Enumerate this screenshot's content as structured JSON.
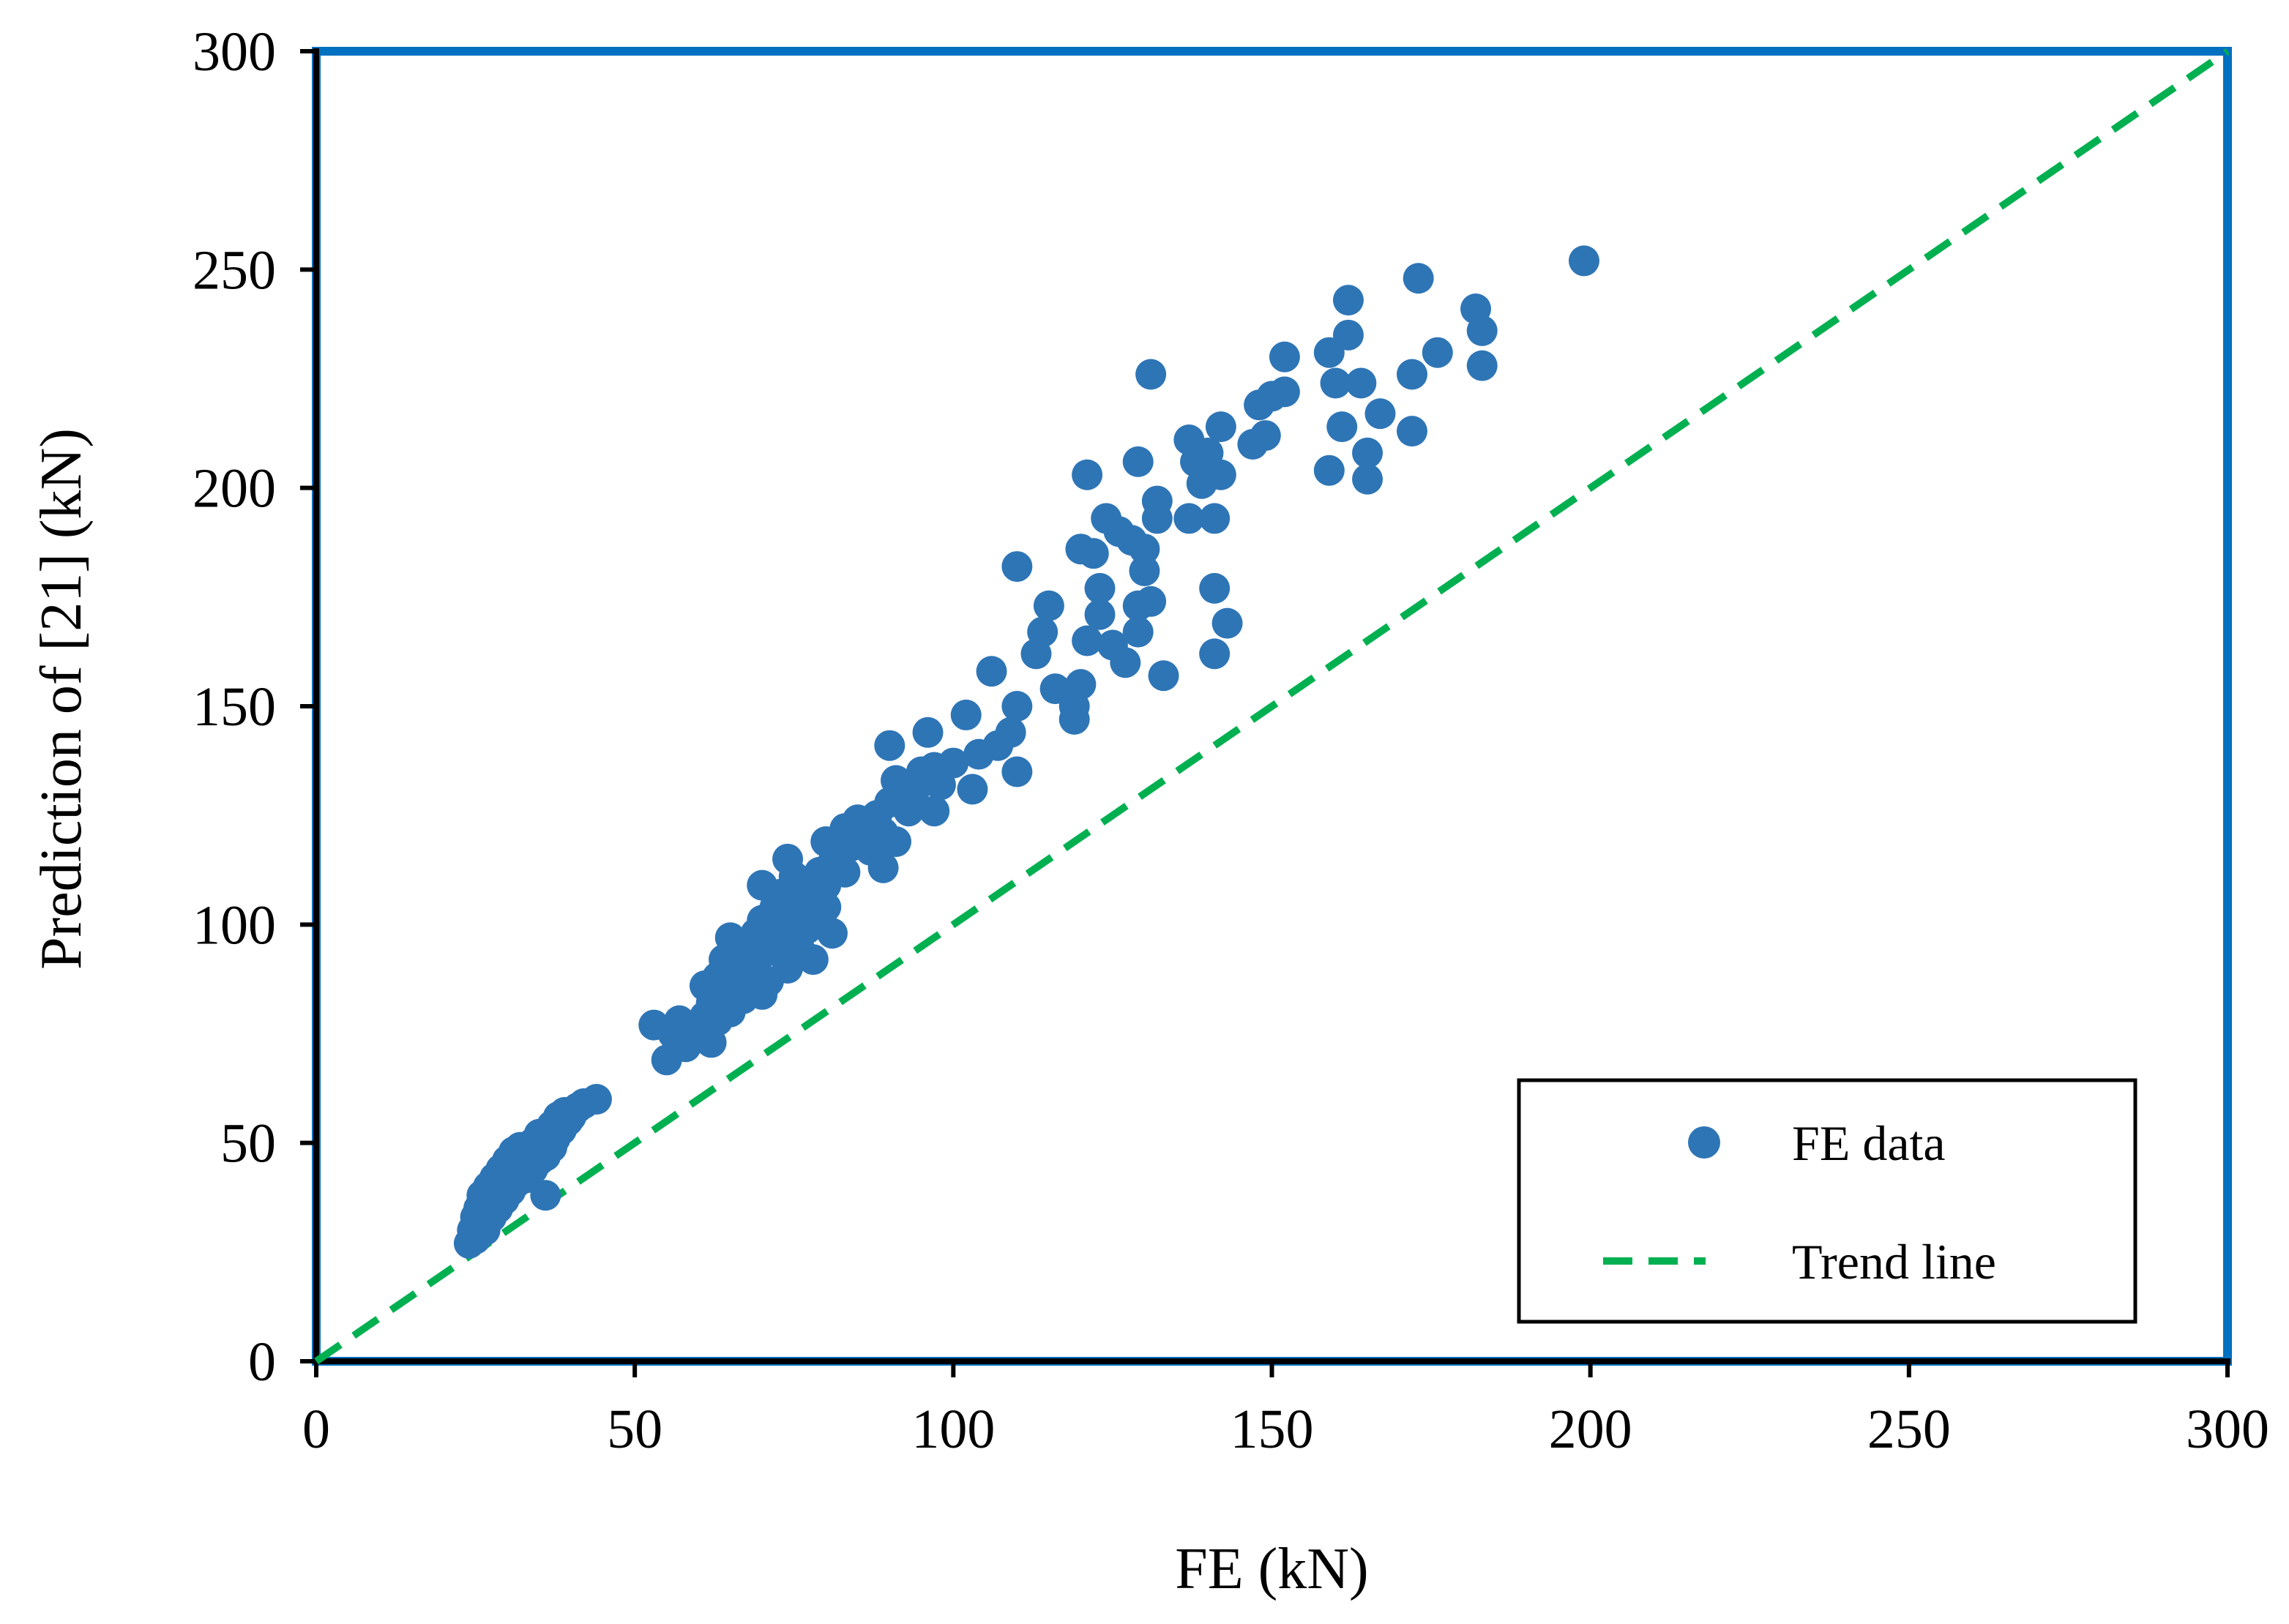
{
  "chart_data": {
    "type": "scatter",
    "xlabel": "FE (kN)",
    "ylabel": "Prediction of [21] (kN)",
    "xlim": [
      0,
      300
    ],
    "ylim": [
      0,
      300
    ],
    "xticks": [
      0,
      50,
      100,
      150,
      200,
      250,
      300
    ],
    "yticks": [
      0,
      50,
      100,
      150,
      200,
      250,
      300
    ],
    "grid": false,
    "legend_position": "bottom-right",
    "colors": {
      "points": "#2E75B6",
      "trend": "#00B050",
      "frame": "#0070C0",
      "axis": "#000000"
    },
    "series": [
      {
        "name": "FE data",
        "kind": "points",
        "points": [
          [
            24,
            27
          ],
          [
            24.5,
            30
          ],
          [
            25,
            33
          ],
          [
            25,
            28
          ],
          [
            25.5,
            35
          ],
          [
            26,
            32
          ],
          [
            26,
            38
          ],
          [
            26.5,
            30
          ],
          [
            27,
            36
          ],
          [
            27,
            40
          ],
          [
            27.5,
            33
          ],
          [
            28,
            38
          ],
          [
            28,
            42
          ],
          [
            28.5,
            35
          ],
          [
            29,
            40
          ],
          [
            29,
            44
          ],
          [
            29.5,
            37
          ],
          [
            30,
            42
          ],
          [
            30,
            46
          ],
          [
            30.5,
            39
          ],
          [
            31,
            44
          ],
          [
            31,
            48
          ],
          [
            31.5,
            41
          ],
          [
            32,
            45
          ],
          [
            32,
            49
          ],
          [
            32.5,
            43
          ],
          [
            33,
            47
          ],
          [
            33,
            42
          ],
          [
            33.5,
            45
          ],
          [
            34,
            50
          ],
          [
            34,
            44
          ],
          [
            34.5,
            48
          ],
          [
            35,
            46
          ],
          [
            35,
            52
          ],
          [
            35.5,
            49
          ],
          [
            36,
            38
          ],
          [
            36,
            47
          ],
          [
            36.5,
            51
          ],
          [
            37,
            49
          ],
          [
            37,
            54
          ],
          [
            37.5,
            51
          ],
          [
            38,
            56
          ],
          [
            38.5,
            53
          ],
          [
            39,
            57
          ],
          [
            39.5,
            55
          ],
          [
            40,
            56
          ],
          [
            41,
            58
          ],
          [
            42,
            59
          ],
          [
            44,
            60
          ],
          [
            53,
            77
          ],
          [
            55,
            69
          ],
          [
            56,
            75
          ],
          [
            57,
            78
          ],
          [
            58,
            72
          ],
          [
            59,
            76
          ],
          [
            60,
            74
          ],
          [
            61,
            79
          ],
          [
            61,
            86
          ],
          [
            62,
            73
          ],
          [
            62,
            82
          ],
          [
            63,
            88
          ],
          [
            63,
            78
          ],
          [
            64,
            92
          ],
          [
            64,
            84
          ],
          [
            65,
            80
          ],
          [
            65,
            97
          ],
          [
            66,
            86
          ],
          [
            66,
            90
          ],
          [
            67,
            95
          ],
          [
            67,
            83
          ],
          [
            68,
            88
          ],
          [
            68,
            93
          ],
          [
            69,
            98
          ],
          [
            69,
            91
          ],
          [
            70,
            84
          ],
          [
            70,
            101
          ],
          [
            70,
            109
          ],
          [
            71,
            94
          ],
          [
            71,
            87
          ],
          [
            72,
            96
          ],
          [
            72,
            104
          ],
          [
            73,
            99
          ],
          [
            73,
            107
          ],
          [
            74,
            97
          ],
          [
            74,
            90
          ],
          [
            74,
            115
          ],
          [
            75,
            102
          ],
          [
            75,
            111
          ],
          [
            76,
            94
          ],
          [
            76,
            108
          ],
          [
            77,
            99
          ],
          [
            77,
            105
          ],
          [
            78,
            101
          ],
          [
            78,
            110
          ],
          [
            78,
            92
          ],
          [
            79,
            112
          ],
          [
            80,
            109
          ],
          [
            80,
            104
          ],
          [
            80,
            119
          ],
          [
            81,
            114
          ],
          [
            81,
            98
          ],
          [
            82,
            117
          ],
          [
            83,
            112
          ],
          [
            83,
            122
          ],
          [
            84,
            118
          ],
          [
            85,
            124
          ],
          [
            86,
            120
          ],
          [
            87,
            117
          ],
          [
            88,
            125
          ],
          [
            89,
            113
          ],
          [
            89,
            121
          ],
          [
            90,
            141
          ],
          [
            90,
            128
          ],
          [
            91,
            133
          ],
          [
            91,
            119
          ],
          [
            92,
            130
          ],
          [
            93,
            126
          ],
          [
            94,
            131
          ],
          [
            95,
            135
          ],
          [
            96,
            144
          ],
          [
            97,
            136
          ],
          [
            97,
            126
          ],
          [
            98,
            132
          ],
          [
            100,
            137
          ],
          [
            102,
            148
          ],
          [
            103,
            131
          ],
          [
            104,
            139
          ],
          [
            106,
            158
          ],
          [
            107,
            141
          ],
          [
            109,
            144
          ],
          [
            110,
            135
          ],
          [
            110,
            150
          ],
          [
            110,
            182
          ],
          [
            113,
            162
          ],
          [
            114,
            167
          ],
          [
            115,
            173
          ],
          [
            116,
            154
          ],
          [
            119,
            150
          ],
          [
            119,
            147
          ],
          [
            120,
            186
          ],
          [
            120,
            155
          ],
          [
            121,
            203
          ],
          [
            121,
            165
          ],
          [
            122,
            185
          ],
          [
            123,
            171
          ],
          [
            123,
            177
          ],
          [
            124,
            193
          ],
          [
            125,
            164
          ],
          [
            126,
            190
          ],
          [
            127,
            160
          ],
          [
            128,
            188
          ],
          [
            129,
            206
          ],
          [
            129,
            173
          ],
          [
            129,
            167
          ],
          [
            130,
            181
          ],
          [
            130,
            186
          ],
          [
            131,
            174
          ],
          [
            131,
            226
          ],
          [
            132,
            197
          ],
          [
            132,
            193
          ],
          [
            133,
            157
          ],
          [
            137,
            193
          ],
          [
            137,
            211
          ],
          [
            138,
            206
          ],
          [
            139,
            201
          ],
          [
            140,
            208
          ],
          [
            141,
            162
          ],
          [
            141,
            193
          ],
          [
            141,
            177
          ],
          [
            142,
            203
          ],
          [
            142,
            214
          ],
          [
            143,
            169
          ],
          [
            147,
            210
          ],
          [
            148,
            219
          ],
          [
            149,
            212
          ],
          [
            150,
            221
          ],
          [
            152,
            222
          ],
          [
            152,
            230
          ],
          [
            159,
            231
          ],
          [
            159,
            204
          ],
          [
            160,
            224
          ],
          [
            161,
            214
          ],
          [
            162,
            243
          ],
          [
            162,
            235
          ],
          [
            164,
            224
          ],
          [
            165,
            202
          ],
          [
            165,
            208
          ],
          [
            167,
            217
          ],
          [
            172,
            213
          ],
          [
            172,
            226
          ],
          [
            173,
            248
          ],
          [
            176,
            231
          ],
          [
            182,
            241
          ],
          [
            183,
            236
          ],
          [
            183,
            228
          ],
          [
            199,
            252
          ]
        ]
      },
      {
        "name": "Trend line",
        "kind": "line",
        "style": "dashed",
        "points": [
          [
            0,
            0
          ],
          [
            300,
            300
          ]
        ]
      }
    ]
  }
}
